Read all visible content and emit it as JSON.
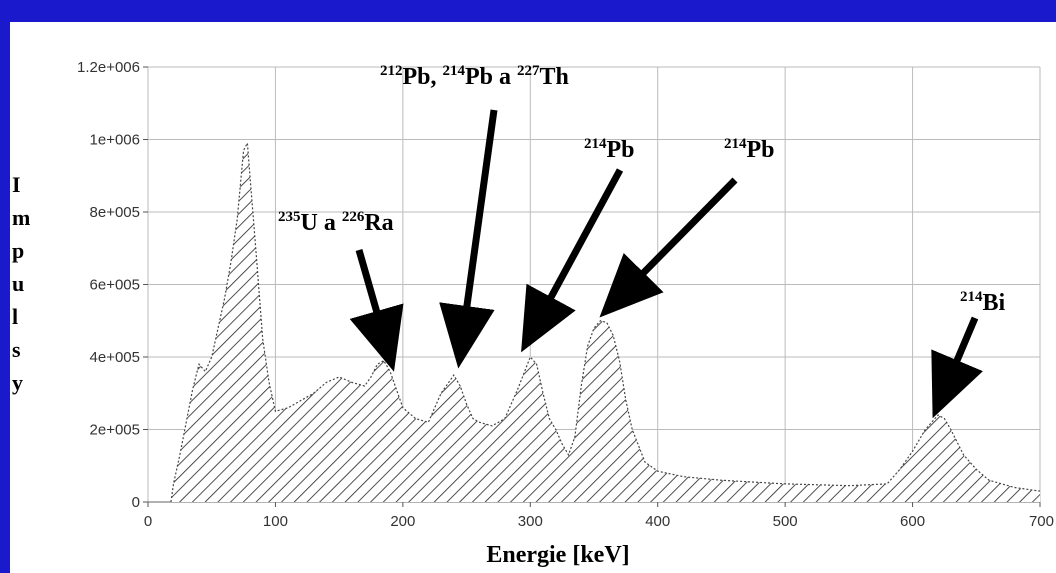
{
  "page_background": "#1a1acc",
  "chart_data": {
    "type": "area",
    "xlabel": "Energie [keV]",
    "ylabel": "Impulsy",
    "xlim": [
      0,
      700
    ],
    "ylim": [
      0,
      1200000
    ],
    "xticks": [
      0,
      100,
      200,
      300,
      400,
      500,
      600,
      700
    ],
    "xtick_labels": [
      "0",
      "100",
      "200",
      "300",
      "400",
      "500",
      "600",
      "700"
    ],
    "yticks": [
      0,
      200000,
      400000,
      600000,
      800000,
      1000000,
      1200000
    ],
    "ytick_labels": [
      "0",
      "2e+005",
      "4e+005",
      "6e+005",
      "8e+005",
      "1e+006",
      "1.2e+006"
    ],
    "grid": true,
    "fill": "hatched",
    "x": [
      18,
      20,
      25,
      30,
      35,
      40,
      45,
      50,
      55,
      60,
      65,
      70,
      75,
      78,
      80,
      85,
      90,
      95,
      100,
      110,
      120,
      130,
      140,
      150,
      160,
      170,
      175,
      180,
      185,
      190,
      195,
      200,
      210,
      220,
      230,
      240,
      245,
      250,
      255,
      260,
      270,
      280,
      290,
      300,
      305,
      310,
      315,
      320,
      325,
      330,
      335,
      340,
      345,
      350,
      355,
      360,
      365,
      370,
      375,
      380,
      390,
      400,
      420,
      450,
      500,
      550,
      580,
      590,
      600,
      610,
      620,
      625,
      630,
      640,
      650,
      660,
      680,
      700
    ],
    "y": [
      0,
      50000,
      130000,
      220000,
      310000,
      380000,
      360000,
      400000,
      480000,
      560000,
      660000,
      780000,
      970000,
      990000,
      900000,
      680000,
      450000,
      330000,
      250000,
      260000,
      280000,
      300000,
      330000,
      345000,
      330000,
      320000,
      345000,
      380000,
      390000,
      360000,
      310000,
      260000,
      230000,
      220000,
      300000,
      350000,
      320000,
      270000,
      230000,
      220000,
      210000,
      230000,
      310000,
      400000,
      380000,
      300000,
      230000,
      200000,
      160000,
      130000,
      180000,
      320000,
      430000,
      480000,
      500000,
      495000,
      460000,
      390000,
      280000,
      200000,
      110000,
      85000,
      70000,
      60000,
      50000,
      45000,
      50000,
      90000,
      140000,
      200000,
      240000,
      230000,
      200000,
      130000,
      90000,
      60000,
      40000,
      30000
    ],
    "annotations": [
      {
        "parts": [
          {
            "sup": "235"
          },
          {
            "text": "U a "
          },
          {
            "sup": "226"
          },
          {
            "text": "Ra"
          }
        ],
        "x": 190,
        "y": 380000
      },
      {
        "parts": [
          {
            "sup": "212"
          },
          {
            "text": "Pb, "
          },
          {
            "sup": "214"
          },
          {
            "text": "Pb a "
          },
          {
            "sup": "227"
          },
          {
            "text": "Th"
          }
        ],
        "x": 245,
        "y": 390000
      },
      {
        "parts": [
          {
            "sup": "214"
          },
          {
            "text": "Pb"
          }
        ],
        "x": 298,
        "y": 430000
      },
      {
        "parts": [
          {
            "sup": "214"
          },
          {
            "text": "Pb"
          }
        ],
        "x": 362,
        "y": 520000
      },
      {
        "parts": [
          {
            "sup": "214"
          },
          {
            "text": "Bi"
          }
        ],
        "x": 620,
        "y": 250000
      }
    ]
  }
}
